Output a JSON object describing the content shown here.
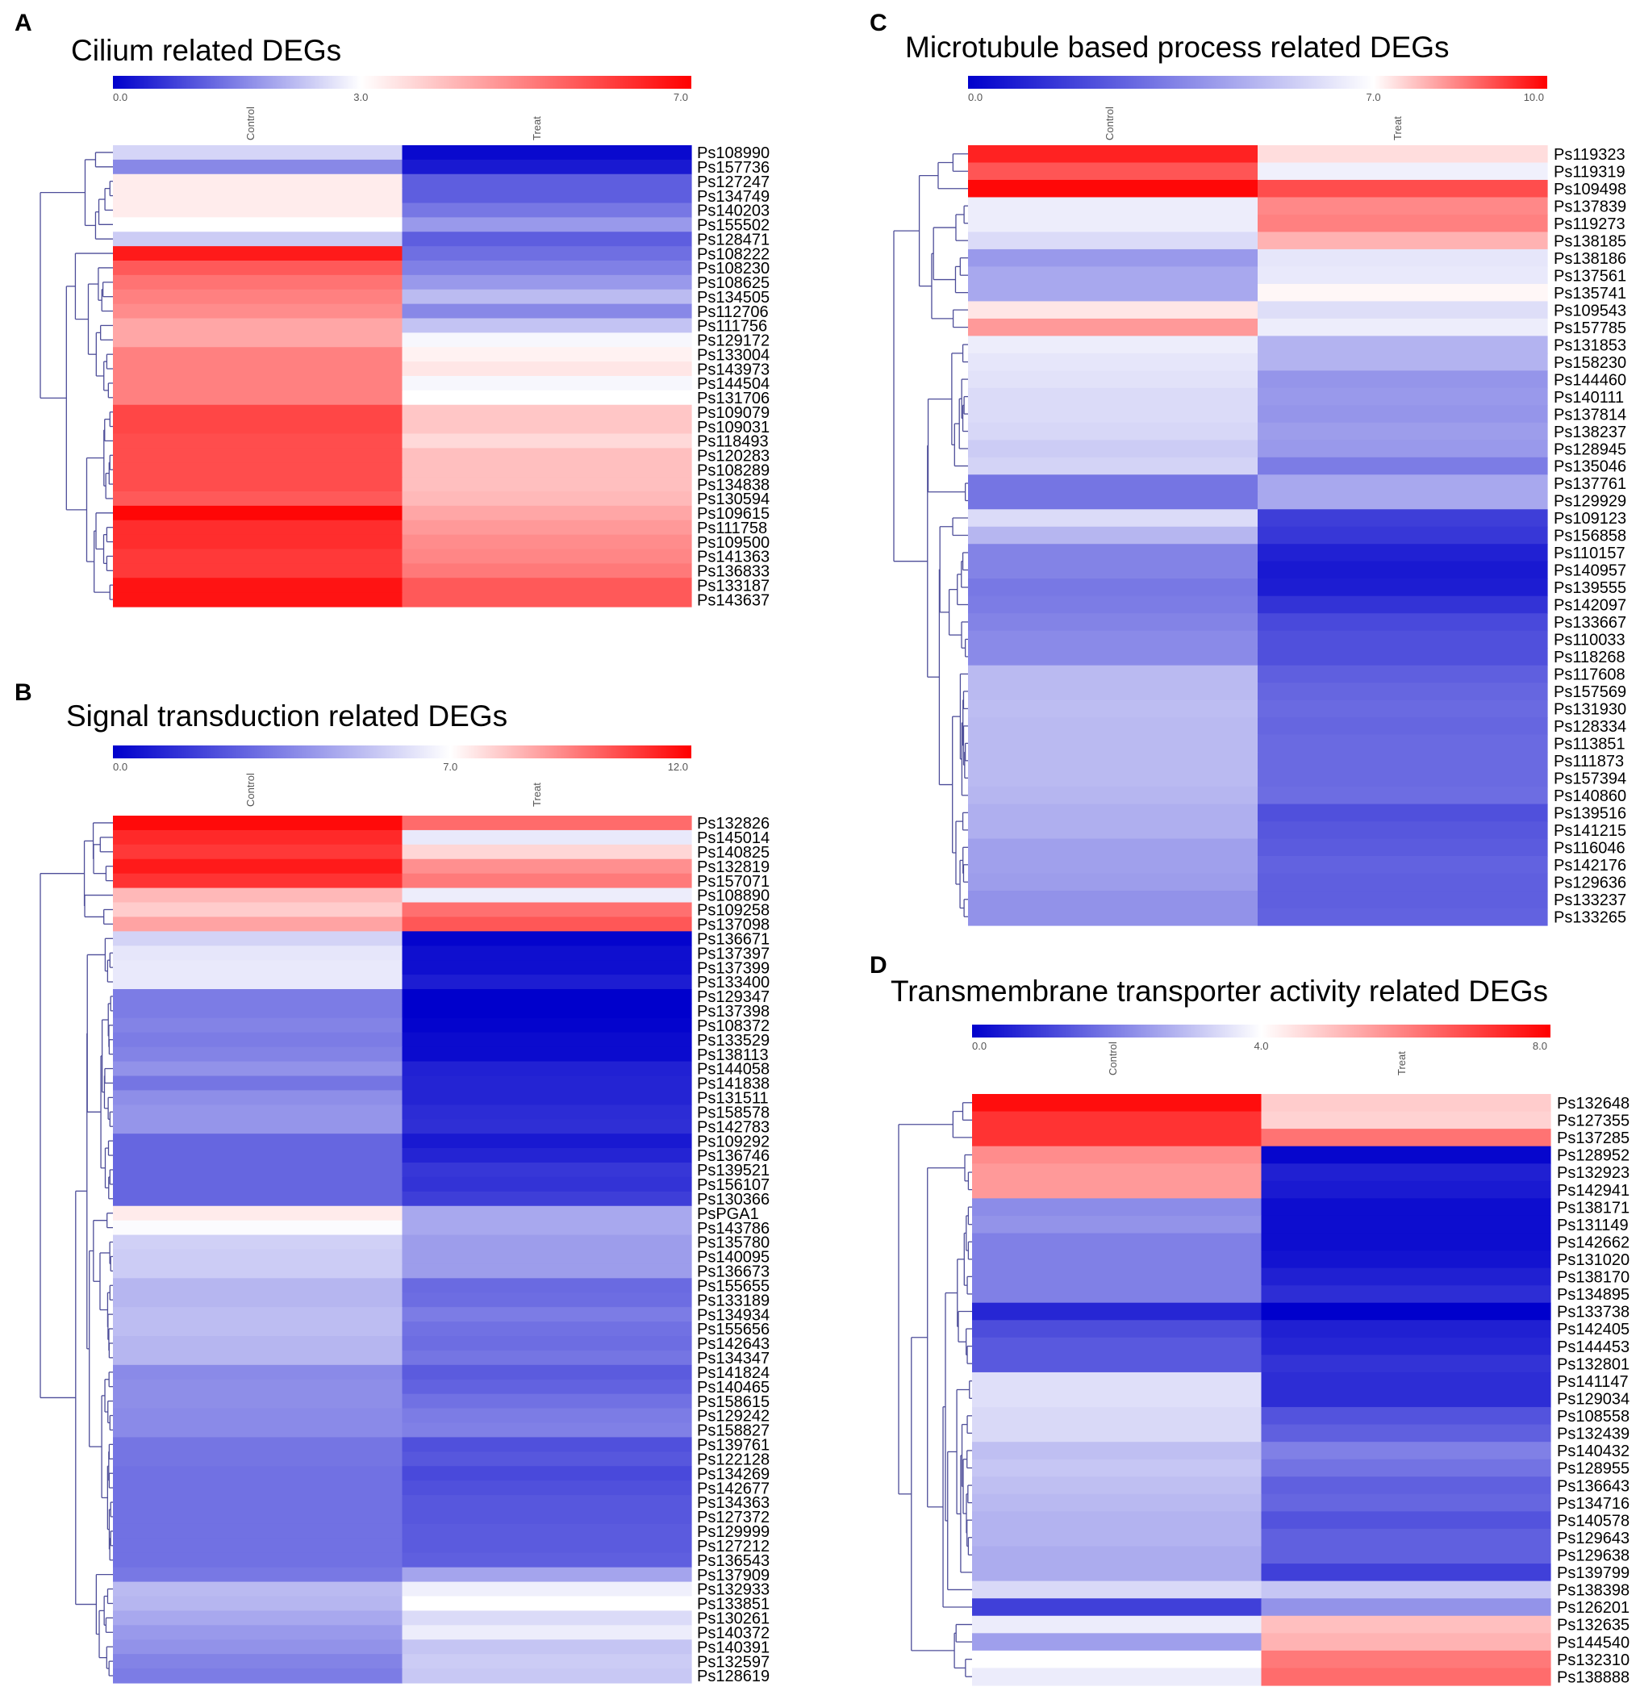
{
  "chart_data": [
    {
      "type": "heatmap",
      "panel_letter": "A",
      "title": "Cilium related DEGs",
      "columns": [
        "Control",
        "Treat"
      ],
      "scale": {
        "min": 0.0,
        "mid": 3.0,
        "max": 7.0,
        "tick_labels": [
          "0.0",
          "3.0",
          "7.0"
        ]
      },
      "rows": [
        "Ps108990",
        "Ps157736",
        "Ps127247",
        "Ps134749",
        "Ps140203",
        "Ps155502",
        "Ps128471",
        "Ps108222",
        "Ps108230",
        "Ps108625",
        "Ps134505",
        "Ps112706",
        "Ps111756",
        "Ps129172",
        "Ps133004",
        "Ps143973",
        "Ps144504",
        "Ps131706",
        "Ps109079",
        "Ps109031",
        "Ps118493",
        "Ps120283",
        "Ps108289",
        "Ps134838",
        "Ps130594",
        "Ps109615",
        "Ps111758",
        "Ps109500",
        "Ps141363",
        "Ps136833",
        "Ps133187",
        "Ps143637"
      ],
      "values": [
        [
          2.5,
          0.1
        ],
        [
          1.6,
          0.3
        ],
        [
          3.3,
          1.1
        ],
        [
          3.3,
          1.1
        ],
        [
          3.3,
          1.4
        ],
        [
          3.0,
          1.8
        ],
        [
          2.4,
          1.1
        ],
        [
          6.6,
          1.3
        ],
        [
          5.6,
          1.5
        ],
        [
          5.2,
          1.8
        ],
        [
          5.0,
          2.2
        ],
        [
          4.8,
          1.6
        ],
        [
          4.4,
          2.3
        ],
        [
          4.4,
          2.9
        ],
        [
          5.0,
          3.2
        ],
        [
          5.0,
          3.4
        ],
        [
          5.0,
          2.9
        ],
        [
          5.0,
          3.0
        ],
        [
          5.9,
          3.9
        ],
        [
          5.9,
          3.9
        ],
        [
          5.8,
          3.6
        ],
        [
          5.8,
          4.0
        ],
        [
          5.8,
          4.0
        ],
        [
          5.8,
          4.0
        ],
        [
          5.6,
          4.1
        ],
        [
          6.9,
          4.4
        ],
        [
          6.3,
          4.6
        ],
        [
          6.3,
          4.8
        ],
        [
          6.1,
          4.9
        ],
        [
          6.1,
          5.1
        ],
        [
          6.7,
          5.6
        ],
        [
          6.7,
          5.6
        ]
      ],
      "dendrogram": "hierarchical clustering tree"
    },
    {
      "type": "heatmap",
      "panel_letter": "B",
      "title": "Signal transduction related DEGs",
      "columns": [
        "Control",
        "Treat"
      ],
      "scale": {
        "min": 0.0,
        "mid": 7.0,
        "max": 12.0,
        "tick_labels": [
          "0.0",
          "7.0",
          "12.0"
        ]
      },
      "rows": [
        "Ps132826",
        "Ps145014",
        "Ps140825",
        "Ps132819",
        "Ps157071",
        "Ps108890",
        "Ps109258",
        "Ps137098",
        "Ps136671",
        "Ps137397",
        "Ps137399",
        "Ps133400",
        "Ps129347",
        "Ps137398",
        "Ps108372",
        "Ps133529",
        "Ps138113",
        "Ps144058",
        "Ps141838",
        "Ps131511",
        "Ps158578",
        "Ps142783",
        "Ps109292",
        "Ps136746",
        "Ps139521",
        "Ps156107",
        "Ps130366",
        "PsPGA1",
        "Ps143786",
        "Ps135780",
        "Ps140095",
        "Ps136673",
        "Ps155655",
        "Ps133189",
        "Ps134934",
        "Ps155656",
        "Ps142643",
        "Ps134347",
        "Ps141824",
        "Ps140465",
        "Ps158615",
        "Ps129242",
        "Ps158827",
        "Ps139761",
        "Ps122128",
        "Ps134269",
        "Ps142677",
        "Ps134363",
        "Ps127372",
        "Ps129999",
        "Ps127212",
        "Ps136543",
        "Ps137909",
        "Ps132933",
        "Ps133851",
        "Ps130261",
        "Ps140372",
        "Ps140391",
        "Ps132597",
        "Ps128619"
      ],
      "values": [
        [
          11.8,
          9.9
        ],
        [
          11.2,
          6.4
        ],
        [
          10.9,
          7.8
        ],
        [
          11.5,
          9.2
        ],
        [
          11.0,
          9.6
        ],
        [
          8.4,
          6.5
        ],
        [
          8.0,
          9.8
        ],
        [
          8.8,
          10.3
        ],
        [
          5.8,
          0.1
        ],
        [
          6.3,
          0.4
        ],
        [
          6.4,
          0.4
        ],
        [
          6.4,
          0.8
        ],
        [
          3.4,
          0.0
        ],
        [
          3.4,
          0.0
        ],
        [
          3.6,
          0.1
        ],
        [
          3.4,
          0.3
        ],
        [
          3.6,
          0.3
        ],
        [
          4.0,
          0.9
        ],
        [
          3.2,
          1.0
        ],
        [
          3.9,
          1.0
        ],
        [
          4.1,
          1.2
        ],
        [
          4.1,
          1.3
        ],
        [
          2.8,
          0.7
        ],
        [
          2.8,
          1.0
        ],
        [
          2.8,
          1.5
        ],
        [
          2.8,
          1.4
        ],
        [
          2.8,
          1.7
        ],
        [
          7.4,
          4.6
        ],
        [
          6.9,
          4.6
        ],
        [
          5.7,
          4.3
        ],
        [
          5.6,
          4.3
        ],
        [
          5.6,
          4.3
        ],
        [
          5.0,
          2.9
        ],
        [
          5.0,
          3.0
        ],
        [
          5.2,
          3.4
        ],
        [
          5.2,
          3.1
        ],
        [
          5.0,
          3.0
        ],
        [
          5.0,
          3.2
        ],
        [
          3.8,
          2.5
        ],
        [
          3.9,
          2.7
        ],
        [
          3.9,
          3.1
        ],
        [
          3.8,
          3.4
        ],
        [
          3.8,
          3.5
        ],
        [
          3.2,
          2.2
        ],
        [
          3.2,
          2.4
        ],
        [
          3.1,
          2.0
        ],
        [
          3.1,
          2.2
        ],
        [
          3.1,
          2.4
        ],
        [
          3.1,
          2.4
        ],
        [
          3.1,
          2.5
        ],
        [
          3.1,
          2.5
        ],
        [
          3.1,
          2.6
        ],
        [
          3.3,
          4.5
        ],
        [
          5.1,
          6.6
        ],
        [
          5.0,
          7.0
        ],
        [
          4.6,
          6.0
        ],
        [
          4.2,
          6.5
        ],
        [
          4.0,
          5.4
        ],
        [
          3.6,
          5.6
        ],
        [
          3.4,
          5.5
        ]
      ],
      "dendrogram": "hierarchical clustering tree"
    },
    {
      "type": "heatmap",
      "panel_letter": "C",
      "title": "Microtubule based process related DEGs",
      "columns": [
        "Control",
        "Treat"
      ],
      "scale": {
        "min": 0.0,
        "mid": 7.0,
        "max": 10.0,
        "tick_labels": [
          "0.0",
          "7.0",
          "10.0"
        ]
      },
      "rows": [
        "Ps119323",
        "Ps119319",
        "Ps109498",
        "Ps137839",
        "Ps119273",
        "Ps138185",
        "Ps138186",
        "Ps137561",
        "Ps135741",
        "Ps109543",
        "Ps157785",
        "Ps131853",
        "Ps158230",
        "Ps144460",
        "Ps140111",
        "Ps137814",
        "Ps138237",
        "Ps128945",
        "Ps135046",
        "Ps137761",
        "Ps129929",
        "Ps109123",
        "Ps156858",
        "Ps110157",
        "Ps140957",
        "Ps139555",
        "Ps142097",
        "Ps133667",
        "Ps110033",
        "Ps118268",
        "Ps117608",
        "Ps157569",
        "Ps131930",
        "Ps128334",
        "Ps113851",
        "Ps111873",
        "Ps157394",
        "Ps140860",
        "Ps139516",
        "Ps141215",
        "Ps116046",
        "Ps142176",
        "Ps129636",
        "Ps133237",
        "Ps133265"
      ],
      "values": [
        [
          9.6,
          7.4
        ],
        [
          9.0,
          6.6
        ],
        [
          9.9,
          9.1
        ],
        [
          6.5,
          8.4
        ],
        [
          6.5,
          8.5
        ],
        [
          6.0,
          7.9
        ],
        [
          4.2,
          6.3
        ],
        [
          4.6,
          6.4
        ],
        [
          4.6,
          7.1
        ],
        [
          7.3,
          6.1
        ],
        [
          8.2,
          6.5
        ],
        [
          6.5,
          4.9
        ],
        [
          6.3,
          4.9
        ],
        [
          6.2,
          4.1
        ],
        [
          6.0,
          4.2
        ],
        [
          6.0,
          4.1
        ],
        [
          5.9,
          4.3
        ],
        [
          5.6,
          4.2
        ],
        [
          5.8,
          3.4
        ],
        [
          3.2,
          4.6
        ],
        [
          3.2,
          4.6
        ],
        [
          6.0,
          1.7
        ],
        [
          5.0,
          1.5
        ],
        [
          3.6,
          0.9
        ],
        [
          3.6,
          0.7
        ],
        [
          3.3,
          0.8
        ],
        [
          3.4,
          1.4
        ],
        [
          3.6,
          2.0
        ],
        [
          3.8,
          2.2
        ],
        [
          3.8,
          2.2
        ],
        [
          5.1,
          2.6
        ],
        [
          5.1,
          2.8
        ],
        [
          5.2,
          2.9
        ],
        [
          5.1,
          2.8
        ],
        [
          5.1,
          2.9
        ],
        [
          5.1,
          2.9
        ],
        [
          5.1,
          2.9
        ],
        [
          5.0,
          3.0
        ],
        [
          4.8,
          2.2
        ],
        [
          4.8,
          2.4
        ],
        [
          4.4,
          2.5
        ],
        [
          4.4,
          2.7
        ],
        [
          4.3,
          2.6
        ],
        [
          4.0,
          2.6
        ],
        [
          4.0,
          2.7
        ]
      ],
      "dendrogram": "hierarchical clustering tree"
    },
    {
      "type": "heatmap",
      "panel_letter": "D",
      "title": "Transmembrane transporter activity related DEGs",
      "columns": [
        "Control",
        "Treat"
      ],
      "scale": {
        "min": 0.0,
        "mid": 4.0,
        "max": 8.0,
        "tick_labels": [
          "0.0",
          "4.0",
          "8.0"
        ]
      },
      "rows": [
        "Ps132648",
        "Ps127355",
        "Ps137285",
        "Ps128952",
        "Ps132923",
        "Ps142941",
        "Ps138171",
        "Ps131149",
        "Ps142662",
        "Ps131020",
        "Ps138170",
        "Ps134895",
        "Ps133738",
        "Ps142405",
        "Ps144453",
        "Ps132801",
        "Ps141147",
        "Ps129034",
        "Ps108558",
        "Ps132439",
        "Ps140432",
        "Ps128955",
        "Ps136643",
        "Ps134716",
        "Ps140578",
        "Ps129643",
        "Ps129638",
        "Ps139799",
        "Ps138398",
        "Ps126201",
        "Ps132635",
        "Ps144540",
        "Ps132310",
        "Ps138888"
      ],
      "values": [
        [
          7.8,
          4.8
        ],
        [
          7.2,
          4.7
        ],
        [
          7.2,
          6.2
        ],
        [
          5.8,
          0.1
        ],
        [
          5.6,
          0.5
        ],
        [
          5.6,
          0.4
        ],
        [
          2.2,
          0.2
        ],
        [
          2.3,
          0.2
        ],
        [
          2.0,
          0.2
        ],
        [
          2.0,
          0.3
        ],
        [
          2.0,
          0.5
        ],
        [
          2.0,
          0.7
        ],
        [
          0.6,
          0.0
        ],
        [
          1.2,
          0.5
        ],
        [
          1.4,
          0.6
        ],
        [
          1.4,
          0.8
        ],
        [
          3.5,
          0.7
        ],
        [
          3.5,
          0.7
        ],
        [
          3.4,
          1.3
        ],
        [
          3.4,
          1.5
        ],
        [
          3.0,
          2.0
        ],
        [
          3.1,
          1.8
        ],
        [
          3.0,
          1.5
        ],
        [
          2.9,
          1.6
        ],
        [
          2.8,
          1.3
        ],
        [
          2.8,
          1.5
        ],
        [
          2.7,
          1.5
        ],
        [
          2.7,
          1.0
        ],
        [
          3.4,
          3.1
        ],
        [
          1.0,
          2.3
        ],
        [
          3.7,
          5.0
        ],
        [
          2.5,
          5.2
        ],
        [
          4.0,
          6.1
        ],
        [
          3.7,
          6.3
        ]
      ],
      "dendrogram": "hierarchical clustering tree"
    }
  ]
}
